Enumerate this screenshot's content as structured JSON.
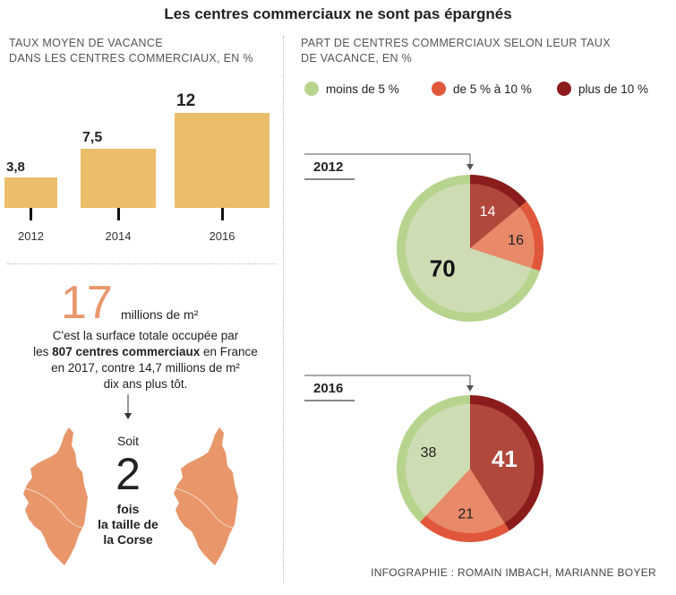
{
  "title": "Les centres commerciaux ne sont pas épargnés",
  "left": {
    "subtitle_line1": "TAUX MOYEN DE VACANCE",
    "subtitle_line2": "DANS LES CENTRES COMMERCIAUX, EN %",
    "big_number": "17",
    "big_unit": "millions de m²",
    "para_line1": "C'est la surface totale occupée par",
    "para_line2_pre": "les ",
    "para_line2_bold": "807 centres commerciaux",
    "para_line2_post": " en France",
    "para_line3": "en 2017, contre 14,7 millions de m²",
    "para_line4": "dix ans plus tôt.",
    "soit": "Soit",
    "two": "2",
    "fois_line1": "fois",
    "fois_line2": "la taille de",
    "fois_line3": "la Corse"
  },
  "right": {
    "subtitle_line1": "PART DE CENTRES COMMERCIAUX SELON LEUR TAUX",
    "subtitle_line2": "DE VACANCE, EN %",
    "legend": [
      {
        "label": "moins de 5 %",
        "color": "#b7d48f"
      },
      {
        "label": "de 5 % à 10 %",
        "color": "#e0573c"
      },
      {
        "label": "plus de 10 %",
        "color": "#8c1c1c"
      }
    ]
  },
  "credit": "INFOGRAPHIE : ROMAIN IMBACH, MARIANNE BOYER",
  "chart_data": [
    {
      "type": "bar",
      "categories": [
        "2012",
        "2014",
        "2016"
      ],
      "values": [
        3.8,
        7.5,
        12
      ],
      "value_labels": [
        "3,8",
        "7,5",
        "12"
      ],
      "title": "Taux moyen de vacance dans les centres commerciaux, en %"
    },
    {
      "type": "pie",
      "year": "2012",
      "slices": [
        {
          "name": "plus de 10 %",
          "value": 14,
          "color": "#8c1c1c"
        },
        {
          "name": "de 5 % à 10 %",
          "value": 16,
          "color": "#e0573c"
        },
        {
          "name": "moins de 5 %",
          "value": 70,
          "color": "#b7d48f"
        }
      ]
    },
    {
      "type": "pie",
      "year": "2016",
      "slices": [
        {
          "name": "plus de 10 %",
          "value": 41,
          "color": "#8c1c1c"
        },
        {
          "name": "de 5 % à 10 %",
          "value": 21,
          "color": "#e0573c"
        },
        {
          "name": "moins de 5 %",
          "value": 38,
          "color": "#b7d48f"
        }
      ]
    }
  ]
}
